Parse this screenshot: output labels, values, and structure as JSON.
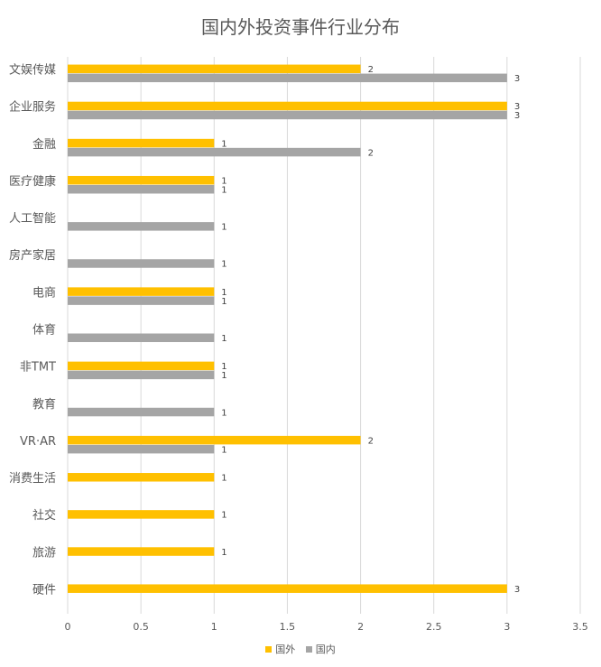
{
  "chart_data": {
    "type": "bar",
    "orientation": "horizontal",
    "title": "国内外投资事件行业分布",
    "categories": [
      "文娱传媒",
      "企业服务",
      "金融",
      "医疗健康",
      "人工智能",
      "房产家居",
      "电商",
      "体育",
      "非TMT",
      "教育",
      "VR·AR",
      "消费生活",
      "社交",
      "旅游",
      "硬件"
    ],
    "series": [
      {
        "name": "国外",
        "color": "#FFC000",
        "values": [
          2,
          3,
          1,
          1,
          null,
          null,
          1,
          null,
          1,
          null,
          2,
          1,
          1,
          1,
          3
        ]
      },
      {
        "name": "国内",
        "color": "#A5A5A5",
        "values": [
          3,
          3,
          2,
          1,
          1,
          1,
          1,
          1,
          1,
          1,
          1,
          null,
          null,
          null,
          null
        ]
      }
    ],
    "xlim": [
      0,
      3.5
    ],
    "x_ticks": [
      "0",
      "0.5",
      "1",
      "1.5",
      "2",
      "2.5",
      "3",
      "3.5"
    ],
    "grid": "vertical",
    "legend_position": "bottom",
    "data_labels": true
  }
}
